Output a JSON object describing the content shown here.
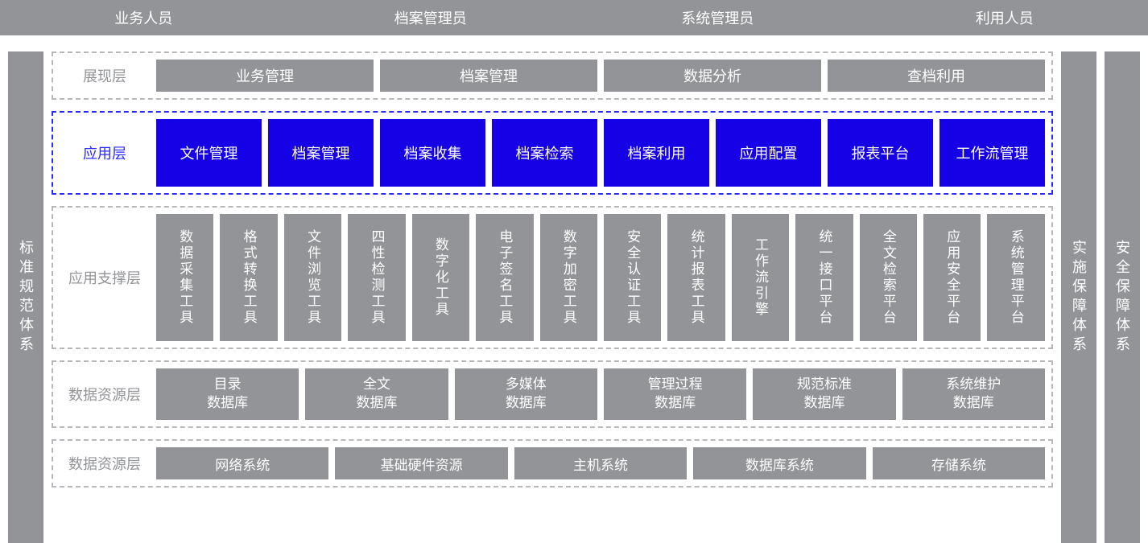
{
  "colors": {
    "gray": "#929497",
    "blue": "#1600e6",
    "blue_border": "#2a2aff",
    "dash_border": "#b6b8bb",
    "background": "#ffffff",
    "text_white": "#ffffff"
  },
  "top_roles": [
    "业务人员",
    "档案管理员",
    "系统管理员",
    "利用人员"
  ],
  "side_left": "标准规范体系",
  "side_right_1": "实施保障体系",
  "side_right_2": "安全保障体系",
  "layers": {
    "presentation": {
      "label": "展现层",
      "items": [
        "业务管理",
        "档案管理",
        "数据分析",
        "查档利用"
      ]
    },
    "application": {
      "label": "应用层",
      "highlighted": true,
      "items": [
        "文件管理",
        "档案管理",
        "档案收集",
        "档案检索",
        "档案利用",
        "应用配置",
        "报表平台",
        "工作流管理"
      ]
    },
    "support": {
      "label": "应用支撑层",
      "items": [
        "数据采集工具",
        "格式转换工具",
        "文件浏览工具",
        "四性检测工具",
        "数字化工具",
        "电子签名工具",
        "数字加密工具",
        "安全认证工具",
        "统计报表工具",
        "工作流引擎",
        "统一接口平台",
        "全文检索平台",
        "应用安全平台",
        "系统管理平台"
      ]
    },
    "data": {
      "label": "数据资源层",
      "items": [
        "目录\n数据库",
        "全文\n数据库",
        "多媒体\n数据库",
        "管理过程\n数据库",
        "规范标准\n数据库",
        "系统维护\n数据库"
      ]
    },
    "infra": {
      "label": "数据资源层",
      "items": [
        "网络系统",
        "基础硬件资源",
        "主机系统",
        "数据库系统",
        "存储系统"
      ]
    }
  }
}
